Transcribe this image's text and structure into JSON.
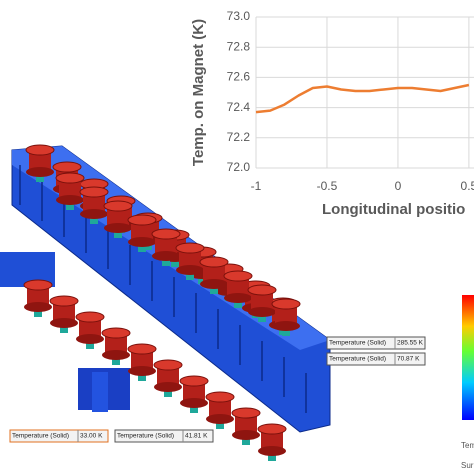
{
  "chart_data": {
    "type": "line",
    "ylabel": "Temp. on Magnet (K)",
    "xlabel": "Longitudinal positio",
    "x": [
      -1,
      -0.9,
      -0.8,
      -0.7,
      -0.6,
      -0.5,
      -0.4,
      -0.3,
      -0.2,
      -0.1,
      0,
      0.1,
      0.2,
      0.3,
      0.4,
      0.5
    ],
    "values": [
      72.37,
      72.38,
      72.42,
      72.48,
      72.53,
      72.54,
      72.52,
      72.51,
      72.51,
      72.52,
      72.53,
      72.53,
      72.52,
      72.51,
      72.53,
      72.55
    ],
    "color": "#ed7d31",
    "xlim": [
      -1,
      0.55
    ],
    "ylim": [
      72,
      73
    ],
    "xticks": [
      -1,
      -0.5,
      0,
      0.5
    ],
    "yticks": [
      {
        "value": 72,
        "label": "72.0"
      },
      72.2,
      72.4,
      72.6,
      72.8,
      {
        "value": 73,
        "label": "73.0"
      }
    ],
    "grid": true
  },
  "render": {
    "annotations": [
      {
        "name": "Temperature (Solid)",
        "value": "285.55 K"
      },
      {
        "name": "Temperature (Solid)",
        "value": "70.87 K"
      },
      {
        "name": "Temperature (Solid)",
        "value": "33.00 K"
      },
      {
        "name": "Temperature (Solid)",
        "value": "41.81 K"
      }
    ],
    "legend_title": "Tem",
    "legend_footer": "Sur"
  }
}
